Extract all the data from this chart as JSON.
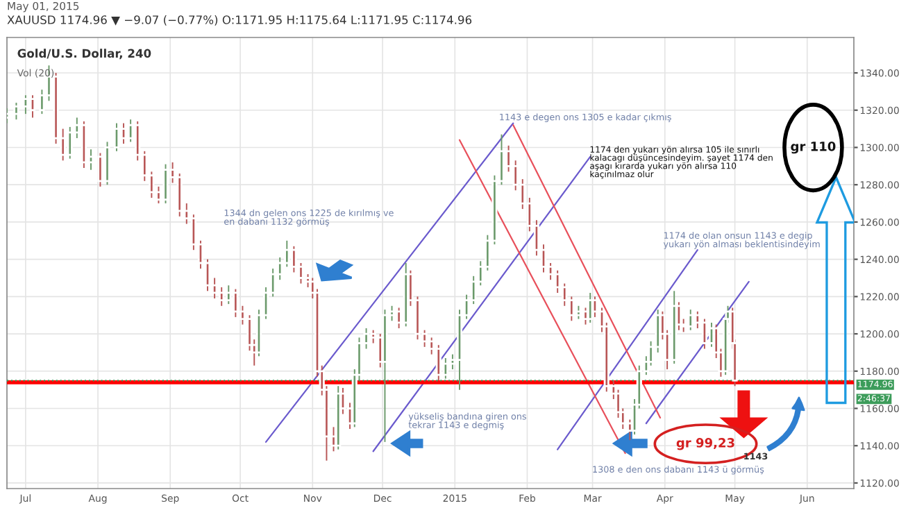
{
  "chart_data": {
    "type": "candlestick",
    "title": "Gold/U.S. Dollar, 240",
    "subtitle": "XAUUSD 1174.96 ▼ −9.07 (−0.77%) O:1171.95 H:1175.64 L:1171.95 C:1174.96",
    "x": [
      "2014-06-23",
      "2014-06-27",
      "2014-07-01",
      "2014-07-04",
      "2014-07-08",
      "2014-07-11",
      "2014-07-14",
      "2014-07-17",
      "2014-07-20",
      "2014-07-23",
      "2014-07-26",
      "2014-07-29",
      "2014-08-02",
      "2014-08-05",
      "2014-08-09",
      "2014-08-12",
      "2014-08-15",
      "2014-08-18",
      "2014-08-21",
      "2014-08-24",
      "2014-08-27",
      "2014-08-30",
      "2014-09-02",
      "2014-09-05",
      "2014-09-08",
      "2014-09-11",
      "2014-09-14",
      "2014-09-17",
      "2014-09-20",
      "2014-09-23",
      "2014-09-26",
      "2014-09-29",
      "2014-10-02",
      "2014-10-05",
      "2014-10-07",
      "2014-10-09",
      "2014-10-12",
      "2014-10-15",
      "2014-10-18",
      "2014-10-21",
      "2014-10-24",
      "2014-10-27",
      "2014-10-30",
      "2014-11-01",
      "2014-11-03",
      "2014-11-05",
      "2014-11-07",
      "2014-11-10",
      "2014-11-12",
      "2014-11-14",
      "2014-11-17",
      "2014-11-19",
      "2014-11-21",
      "2014-11-24",
      "2014-11-27",
      "2014-11-30",
      "2014-12-02",
      "2014-12-05",
      "2014-12-08",
      "2014-12-11",
      "2014-12-13",
      "2014-12-16",
      "2014-12-19",
      "2014-12-22",
      "2014-12-25",
      "2014-12-28",
      "2014-12-31",
      "2015-01-03",
      "2015-01-06",
      "2015-01-09",
      "2015-01-12",
      "2015-01-15",
      "2015-01-18",
      "2015-01-21",
      "2015-01-24",
      "2015-01-27",
      "2015-01-30",
      "2015-02-02",
      "2015-02-05",
      "2015-02-08",
      "2015-02-11",
      "2015-02-14",
      "2015-02-17",
      "2015-02-20",
      "2015-02-23",
      "2015-02-26",
      "2015-02-28",
      "2015-03-02",
      "2015-03-05",
      "2015-03-07",
      "2015-03-10",
      "2015-03-12",
      "2015-03-14",
      "2015-03-17",
      "2015-03-19",
      "2015-03-21",
      "2015-03-24",
      "2015-03-26",
      "2015-03-29",
      "2015-03-31",
      "2015-04-02",
      "2015-04-05",
      "2015-04-07",
      "2015-04-09",
      "2015-04-12",
      "2015-04-15",
      "2015-04-18",
      "2015-04-21",
      "2015-04-23",
      "2015-04-25",
      "2015-04-27",
      "2015-04-28",
      "2015-04-30",
      "2015-05-01"
    ],
    "ohlc": [
      [
        1316,
        1321,
        1313,
        1318
      ],
      [
        1318,
        1324,
        1315,
        1322
      ],
      [
        1322,
        1328,
        1318,
        1326
      ],
      [
        1326,
        1328,
        1316,
        1320
      ],
      [
        1320,
        1331,
        1318,
        1328
      ],
      [
        1328,
        1344,
        1325,
        1338
      ],
      [
        1338,
        1340,
        1302,
        1305
      ],
      [
        1305,
        1310,
        1293,
        1296
      ],
      [
        1296,
        1311,
        1294,
        1308
      ],
      [
        1308,
        1316,
        1305,
        1312
      ],
      [
        1312,
        1314,
        1289,
        1292
      ],
      [
        1292,
        1299,
        1288,
        1295
      ],
      [
        1295,
        1297,
        1279,
        1282
      ],
      [
        1282,
        1303,
        1280,
        1300
      ],
      [
        1300,
        1313,
        1298,
        1310
      ],
      [
        1310,
        1313,
        1302,
        1305
      ],
      [
        1305,
        1315,
        1303,
        1312
      ],
      [
        1312,
        1314,
        1293,
        1296
      ],
      [
        1296,
        1298,
        1282,
        1285
      ],
      [
        1285,
        1287,
        1273,
        1276
      ],
      [
        1276,
        1279,
        1270,
        1272
      ],
      [
        1272,
        1291,
        1270,
        1288
      ],
      [
        1288,
        1292,
        1281,
        1284
      ],
      [
        1284,
        1286,
        1263,
        1266
      ],
      [
        1266,
        1270,
        1259,
        1262
      ],
      [
        1262,
        1264,
        1245,
        1248
      ],
      [
        1248,
        1250,
        1235,
        1238
      ],
      [
        1238,
        1240,
        1223,
        1226
      ],
      [
        1226,
        1230,
        1219,
        1222
      ],
      [
        1222,
        1225,
        1215,
        1218
      ],
      [
        1218,
        1226,
        1216,
        1222
      ],
      [
        1222,
        1224,
        1209,
        1212
      ],
      [
        1212,
        1215,
        1205,
        1208
      ],
      [
        1208,
        1210,
        1191,
        1194
      ],
      [
        1194,
        1197,
        1183,
        1190
      ],
      [
        1190,
        1213,
        1188,
        1210
      ],
      [
        1210,
        1225,
        1208,
        1222
      ],
      [
        1222,
        1235,
        1220,
        1232
      ],
      [
        1232,
        1241,
        1229,
        1238
      ],
      [
        1238,
        1250,
        1236,
        1245
      ],
      [
        1245,
        1247,
        1233,
        1236
      ],
      [
        1236,
        1238,
        1227,
        1230
      ],
      [
        1230,
        1232,
        1225,
        1228
      ],
      [
        1228,
        1230,
        1219,
        1222
      ],
      [
        1222,
        1224,
        1177,
        1180
      ],
      [
        1180,
        1183,
        1167,
        1170
      ],
      [
        1170,
        1172,
        1132,
        1145
      ],
      [
        1145,
        1150,
        1137,
        1140
      ],
      [
        1140,
        1172,
        1138,
        1168
      ],
      [
        1168,
        1171,
        1157,
        1160
      ],
      [
        1160,
        1163,
        1149,
        1152
      ],
      [
        1152,
        1181,
        1150,
        1178
      ],
      [
        1178,
        1198,
        1175,
        1195
      ],
      [
        1195,
        1203,
        1192,
        1200
      ],
      [
        1200,
        1202,
        1195,
        1198
      ],
      [
        1198,
        1200,
        1182,
        1185
      ],
      [
        1185,
        1213,
        1142,
        1210
      ],
      [
        1210,
        1215,
        1207,
        1212
      ],
      [
        1212,
        1214,
        1203,
        1206
      ],
      [
        1206,
        1238,
        1204,
        1232
      ],
      [
        1232,
        1234,
        1215,
        1218
      ],
      [
        1218,
        1220,
        1197,
        1200
      ],
      [
        1200,
        1202,
        1193,
        1196
      ],
      [
        1196,
        1198,
        1189,
        1192
      ],
      [
        1192,
        1194,
        1175,
        1178
      ],
      [
        1178,
        1187,
        1176,
        1184
      ],
      [
        1184,
        1189,
        1181,
        1186
      ],
      [
        1186,
        1213,
        1170,
        1210
      ],
      [
        1210,
        1221,
        1208,
        1218
      ],
      [
        1218,
        1231,
        1216,
        1228
      ],
      [
        1228,
        1239,
        1226,
        1236
      ],
      [
        1236,
        1253,
        1234,
        1250
      ],
      [
        1250,
        1285,
        1248,
        1282
      ],
      [
        1282,
        1307,
        1280,
        1298
      ],
      [
        1298,
        1301,
        1287,
        1290
      ],
      [
        1290,
        1293,
        1277,
        1280
      ],
      [
        1280,
        1283,
        1267,
        1270
      ],
      [
        1270,
        1273,
        1255,
        1258
      ],
      [
        1258,
        1261,
        1242,
        1245
      ],
      [
        1245,
        1248,
        1233,
        1236
      ],
      [
        1236,
        1238,
        1229,
        1232
      ],
      [
        1232,
        1234,
        1222,
        1225
      ],
      [
        1225,
        1227,
        1215,
        1218
      ],
      [
        1218,
        1220,
        1207,
        1210
      ],
      [
        1210,
        1215,
        1208,
        1212
      ],
      [
        1212,
        1214,
        1205,
        1208
      ],
      [
        1208,
        1222,
        1206,
        1218
      ],
      [
        1218,
        1220,
        1209,
        1212
      ],
      [
        1212,
        1214,
        1201,
        1204
      ],
      [
        1204,
        1206,
        1169,
        1172
      ],
      [
        1172,
        1175,
        1165,
        1168
      ],
      [
        1168,
        1170,
        1155,
        1158
      ],
      [
        1158,
        1160,
        1149,
        1152
      ],
      [
        1152,
        1154,
        1143,
        1148
      ],
      [
        1148,
        1165,
        1146,
        1162
      ],
      [
        1162,
        1183,
        1160,
        1180
      ],
      [
        1180,
        1188,
        1178,
        1185
      ],
      [
        1185,
        1196,
        1183,
        1193
      ],
      [
        1193,
        1213,
        1190,
        1210
      ],
      [
        1210,
        1212,
        1197,
        1200
      ],
      [
        1200,
        1202,
        1181,
        1186
      ],
      [
        1186,
        1223,
        1184,
        1215
      ],
      [
        1215,
        1217,
        1202,
        1205
      ],
      [
        1205,
        1208,
        1201,
        1204
      ],
      [
        1204,
        1213,
        1202,
        1210
      ],
      [
        1210,
        1212,
        1203,
        1206
      ],
      [
        1206,
        1208,
        1192,
        1195
      ],
      [
        1195,
        1206,
        1193,
        1203
      ],
      [
        1203,
        1205,
        1187,
        1190
      ],
      [
        1190,
        1192,
        1177,
        1180
      ],
      [
        1180,
        1211,
        1178,
        1208
      ],
      [
        1208,
        1215,
        1206,
        1212
      ],
      [
        1212,
        1214,
        1192,
        1195
      ],
      [
        1195,
        1197,
        1172,
        1174.96
      ]
    ],
    "series": [
      {
        "type": "line",
        "color": "#6a5acd",
        "x": [
          "2014-10-12",
          "2015-01-26"
        ],
        "values": [
          1142,
          1313
        ]
      },
      {
        "type": "line",
        "color": "#6a5acd",
        "x": [
          "2014-11-27",
          "2015-02-28"
        ],
        "values": [
          1137,
          1295
        ]
      },
      {
        "type": "line",
        "color": "#6a5acd",
        "x": [
          "2015-02-14",
          "2015-04-15"
        ],
        "values": [
          1138,
          1245
        ]
      },
      {
        "type": "line",
        "color": "#6a5acd",
        "x": [
          "2015-03-24",
          "2015-05-07"
        ],
        "values": [
          1152,
          1228
        ]
      },
      {
        "type": "line",
        "color": "#e8505b",
        "x": [
          "2015-01-03",
          "2015-03-15"
        ],
        "values": [
          1304,
          1136
        ]
      },
      {
        "type": "line",
        "color": "#e8505b",
        "x": [
          "2015-01-26",
          "2015-03-30"
        ],
        "values": [
          1312,
          1155
        ]
      }
    ],
    "xlim": [
      "2014-06-23",
      "2015-06-21"
    ],
    "xticks": [
      {
        "value": "2014-07-01",
        "label": "Jul"
      },
      {
        "value": "2014-08-01",
        "label": "Aug"
      },
      {
        "value": "2014-09-01",
        "label": "Sep"
      },
      {
        "value": "2014-10-01",
        "label": "Oct"
      },
      {
        "value": "2014-11-01",
        "label": "Nov"
      },
      {
        "value": "2014-12-01",
        "label": "Dec"
      },
      {
        "value": "2015-01-01",
        "label": "2015"
      },
      {
        "value": "2015-02-01",
        "label": "Feb"
      },
      {
        "value": "2015-03-01",
        "label": "Mar"
      },
      {
        "value": "2015-04-01",
        "label": "Apr"
      },
      {
        "value": "2015-05-01",
        "label": "May"
      },
      {
        "value": "2015-06-01",
        "label": "Jun"
      }
    ],
    "ylim": [
      1117,
      1359
    ],
    "yticks": [
      {
        "value": 1120,
        "label": "1120.00"
      },
      {
        "value": 1140,
        "label": "1140.00"
      },
      {
        "value": 1160,
        "label": "1160.00"
      },
      {
        "value": 1180,
        "label": "1180.00"
      },
      {
        "value": 1200,
        "label": "1200.00"
      },
      {
        "value": 1220,
        "label": "1220.00"
      },
      {
        "value": 1240,
        "label": "1240.00"
      },
      {
        "value": 1260,
        "label": "1260.00"
      },
      {
        "value": 1280,
        "label": "1280.00"
      },
      {
        "value": 1300,
        "label": "1300.00"
      },
      {
        "value": 1320,
        "label": "1320.00"
      },
      {
        "value": 1340,
        "label": "1340.00"
      }
    ],
    "ref_lines": [
      {
        "axis": "y",
        "value": 1174,
        "color": "#ff0000",
        "line_style": "solid"
      },
      {
        "axis": "y",
        "value": 1174.96,
        "label": "1174.96",
        "color": "#3c9c5a",
        "line_style": "dotted"
      }
    ],
    "grid": true,
    "annotations": [
      "May 01, 2015",
      "Vol (20)",
      "2:46:37",
      "1344 dn gelen ons 1225 de kırılmış ve\nen dabanı 1132 görmüş",
      "1143 e degen ons 1305 e kadar çıkmış",
      "1174 den yukarı yön alırsa 105 ile sınırlı\nkalacagı düşüncesindeyim. şayet 1174 den\naşagı kırarda yukarı yön alırsa 110\nkaçınılmaz olur",
      "gr 110",
      "1174 de olan onsun 1143 e degip\nyukarı yön alması beklentisindeyim",
      "yükseliş bandına giren ons\ntekrar 1143 e degmiş",
      "gr 99,23",
      "1143",
      "1308 e den ons dabanı 1143 ü görmüş"
    ]
  }
}
